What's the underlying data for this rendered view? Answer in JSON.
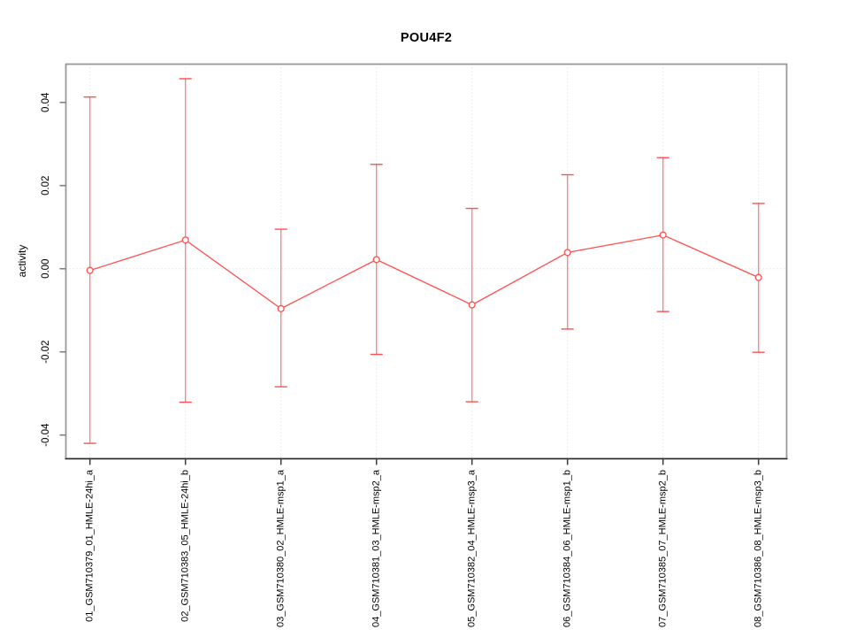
{
  "title": "POU4F2",
  "chart_data": {
    "type": "line",
    "title": "POU4F2",
    "xlabel": "",
    "ylabel": "activity",
    "ylim": [
      -0.0457,
      0.0492
    ],
    "yticks": [
      -0.04,
      -0.02,
      0.0,
      0.02,
      0.04
    ],
    "ytick_labels": [
      "-0.04",
      "-0.02",
      "0.00",
      "0.02",
      "0.04"
    ],
    "grid": "dotted vertical line at each category; dotted horizontal line at zero",
    "legend_position": "none",
    "categories": [
      "01_GSM710379_01_HMLE-24hi_a",
      "02_GSM710383_05_HMLE-24hi_b",
      "03_GSM710380_02_HMLE-msp1_a",
      "04_GSM710381_03_HMLE-msp2_a",
      "05_GSM710382_04_HMLE-msp3_a",
      "06_GSM710384_06_HMLE-msp1_b",
      "07_GSM710385_07_HMLE-msp2_b",
      "08_GSM710386_08_HMLE-msp3_b"
    ],
    "series": [
      {
        "name": "activity",
        "marker": "open-circle",
        "values": [
          -0.0004,
          0.0069,
          -0.0096,
          0.0022,
          -0.0087,
          0.0039,
          0.0081,
          -0.0021
        ],
        "ci_high": [
          0.0413,
          0.0457,
          0.0095,
          0.0251,
          0.0145,
          0.0226,
          0.0267,
          0.0157
        ],
        "ci_low": [
          -0.042,
          -0.0321,
          -0.0284,
          -0.0206,
          -0.032,
          -0.0145,
          -0.0103,
          -0.0201
        ]
      }
    ],
    "colors": {
      "series": "#ff4f4f",
      "error_bar_stem": "#ff8585",
      "marker_fill": "#ffffff",
      "frame": "#999999",
      "x_axis_line": "#2b2b2b",
      "y_tick": "#808080",
      "x_tick": "#444444",
      "gridline": "#d6d6d6",
      "text": "#000000",
      "background": "#ffffff"
    }
  }
}
